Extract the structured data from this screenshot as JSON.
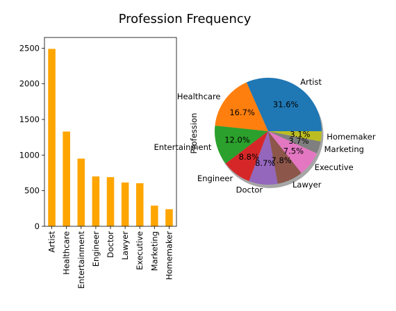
{
  "suptitle": "Profession Frequency",
  "chart_data": [
    {
      "type": "bar",
      "categories": [
        "Artist",
        "Healthcare",
        "Entertainment",
        "Engineer",
        "Doctor",
        "Lawyer",
        "Executive",
        "Marketing",
        "Homemaker"
      ],
      "values": [
        2490,
        1330,
        950,
        700,
        690,
        615,
        605,
        290,
        240
      ],
      "ylim": [
        0,
        2650
      ],
      "yticks": [
        0,
        500,
        1000,
        1500,
        2000,
        2500
      ],
      "color": "#ffa500",
      "grid": false
    },
    {
      "type": "pie",
      "ylabel": "Profession",
      "labels": [
        "Artist",
        "Healthcare",
        "Entertainment",
        "Engineer",
        "Doctor",
        "Lawyer",
        "Executive",
        "Marketing",
        "Homemaker"
      ],
      "values": [
        31.6,
        16.7,
        12.0,
        8.8,
        8.7,
        7.8,
        7.5,
        3.7,
        3.1
      ],
      "pct_labels": [
        "31.6%",
        "16.7%",
        "12.0%",
        "8.8%",
        "8.7%",
        "7.8%",
        "7.5%",
        "3.7%",
        "3.1%"
      ],
      "colors": [
        "#1f77b4",
        "#ff7f0e",
        "#2ca02c",
        "#d62728",
        "#9467bd",
        "#8c564b",
        "#e377c2",
        "#7f7f7f",
        "#bcbd22"
      ],
      "start_angle_deg": 0,
      "counterclock": true
    }
  ]
}
